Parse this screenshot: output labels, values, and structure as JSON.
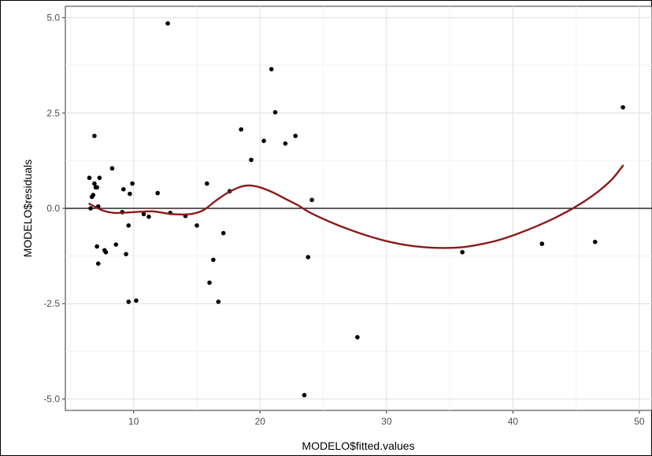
{
  "chart_data": {
    "type": "scatter",
    "title": "",
    "xlabel": "MODELO$fitted.values",
    "ylabel": "MODELO$residuals",
    "xlim": [
      4.6,
      51.0
    ],
    "ylim": [
      -5.3,
      5.3
    ],
    "x_ticks": [
      10,
      20,
      30,
      40,
      50
    ],
    "x_tick_labels": [
      "10",
      "20",
      "30",
      "40",
      "50"
    ],
    "y_ticks": [
      5.0,
      2.5,
      0.0,
      -2.5,
      -5.0
    ],
    "y_tick_labels": [
      "5.0",
      "2.5",
      "0.0",
      "-2.5",
      "-5.0"
    ],
    "grid": true,
    "reference_line_y": 0,
    "point_color": "#000000",
    "smooth_color": "#8b1a1a",
    "points": [
      {
        "x": 6.5,
        "y": 0.8
      },
      {
        "x": 6.7,
        "y": 0.3
      },
      {
        "x": 6.6,
        "y": 0.0
      },
      {
        "x": 6.9,
        "y": 0.65
      },
      {
        "x": 7.0,
        "y": 0.55
      },
      {
        "x": 7.1,
        "y": 0.55
      },
      {
        "x": 6.9,
        "y": 1.9
      },
      {
        "x": 7.3,
        "y": 0.8
      },
      {
        "x": 6.8,
        "y": 0.35
      },
      {
        "x": 7.2,
        "y": 0.05
      },
      {
        "x": 7.1,
        "y": -1.0
      },
      {
        "x": 7.2,
        "y": -1.45
      },
      {
        "x": 7.8,
        "y": -1.15
      },
      {
        "x": 7.7,
        "y": -1.1
      },
      {
        "x": 8.3,
        "y": 1.05
      },
      {
        "x": 8.6,
        "y": -0.95
      },
      {
        "x": 9.1,
        "y": -0.1
      },
      {
        "x": 9.2,
        "y": 0.5
      },
      {
        "x": 9.4,
        "y": -1.2
      },
      {
        "x": 9.6,
        "y": -0.45
      },
      {
        "x": 9.7,
        "y": 0.38
      },
      {
        "x": 9.9,
        "y": 0.65
      },
      {
        "x": 9.6,
        "y": -2.45
      },
      {
        "x": 10.2,
        "y": -2.42
      },
      {
        "x": 10.8,
        "y": -0.15
      },
      {
        "x": 11.2,
        "y": -0.22
      },
      {
        "x": 11.9,
        "y": 0.4
      },
      {
        "x": 12.7,
        "y": 4.85
      },
      {
        "x": 12.9,
        "y": -0.12
      },
      {
        "x": 14.1,
        "y": -0.2
      },
      {
        "x": 15.0,
        "y": -0.45
      },
      {
        "x": 15.8,
        "y": 0.65
      },
      {
        "x": 16.0,
        "y": -1.95
      },
      {
        "x": 16.3,
        "y": -1.35
      },
      {
        "x": 16.7,
        "y": -2.45
      },
      {
        "x": 17.1,
        "y": -0.65
      },
      {
        "x": 17.6,
        "y": 0.45
      },
      {
        "x": 18.5,
        "y": 2.07
      },
      {
        "x": 19.3,
        "y": 1.27
      },
      {
        "x": 20.3,
        "y": 1.77
      },
      {
        "x": 20.9,
        "y": 3.65
      },
      {
        "x": 21.2,
        "y": 2.52
      },
      {
        "x": 22.0,
        "y": 1.7
      },
      {
        "x": 22.8,
        "y": 1.9
      },
      {
        "x": 23.5,
        "y": -4.9
      },
      {
        "x": 23.8,
        "y": -1.28
      },
      {
        "x": 24.1,
        "y": 0.22
      },
      {
        "x": 27.7,
        "y": -3.38
      },
      {
        "x": 36.0,
        "y": -1.15
      },
      {
        "x": 42.3,
        "y": -0.93
      },
      {
        "x": 46.5,
        "y": -0.88
      },
      {
        "x": 48.7,
        "y": 2.65
      }
    ],
    "smooth": [
      {
        "x": 6.5,
        "y": 0.12
      },
      {
        "x": 7.5,
        "y": -0.05
      },
      {
        "x": 8.5,
        "y": -0.12
      },
      {
        "x": 10.0,
        "y": -0.1
      },
      {
        "x": 11.5,
        "y": -0.08
      },
      {
        "x": 13.0,
        "y": -0.15
      },
      {
        "x": 14.5,
        "y": -0.15
      },
      {
        "x": 15.5,
        "y": -0.05
      },
      {
        "x": 16.5,
        "y": 0.2
      },
      {
        "x": 17.5,
        "y": 0.42
      },
      {
        "x": 18.5,
        "y": 0.57
      },
      {
        "x": 19.2,
        "y": 0.6
      },
      {
        "x": 20.0,
        "y": 0.55
      },
      {
        "x": 21.0,
        "y": 0.42
      },
      {
        "x": 22.0,
        "y": 0.25
      },
      {
        "x": 23.0,
        "y": 0.08
      },
      {
        "x": 24.0,
        "y": -0.12
      },
      {
        "x": 25.5,
        "y": -0.35
      },
      {
        "x": 27.0,
        "y": -0.55
      },
      {
        "x": 28.5,
        "y": -0.72
      },
      {
        "x": 30.0,
        "y": -0.86
      },
      {
        "x": 31.5,
        "y": -0.96
      },
      {
        "x": 33.0,
        "y": -1.02
      },
      {
        "x": 34.5,
        "y": -1.04
      },
      {
        "x": 36.0,
        "y": -1.02
      },
      {
        "x": 37.5,
        "y": -0.94
      },
      {
        "x": 39.0,
        "y": -0.82
      },
      {
        "x": 40.5,
        "y": -0.65
      },
      {
        "x": 42.0,
        "y": -0.45
      },
      {
        "x": 43.5,
        "y": -0.22
      },
      {
        "x": 45.0,
        "y": 0.05
      },
      {
        "x": 46.5,
        "y": 0.38
      },
      {
        "x": 47.8,
        "y": 0.75
      },
      {
        "x": 48.7,
        "y": 1.12
      }
    ]
  }
}
